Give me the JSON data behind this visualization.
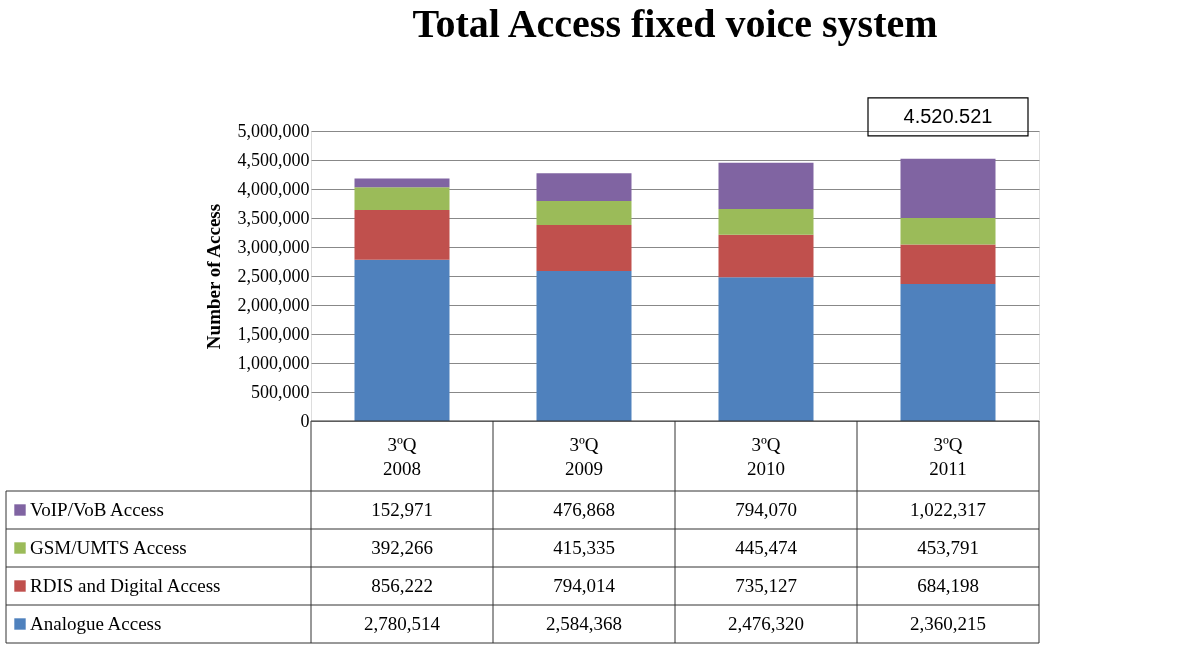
{
  "chart_data": {
    "type": "bar",
    "title": "Total Access fixed voice system",
    "ylabel": "Number of Access",
    "categories": [
      "3ºQ 2008",
      "3ºQ 2009",
      "3ºQ 2010",
      "3ºQ 2011"
    ],
    "stacked": true,
    "series": [
      {
        "name": "Analogue Access",
        "color": "#4f81bd",
        "values": [
          2780514,
          2584368,
          2476320,
          2360215
        ],
        "value_labels": [
          "2,780,514",
          "2,584,368",
          "2,476,320",
          "2,360,215"
        ]
      },
      {
        "name": "RDIS and Digital Access",
        "color": "#c0504d",
        "values": [
          856222,
          794014,
          735127,
          684198
        ],
        "value_labels": [
          "856,222",
          "794,014",
          "735,127",
          "684,198"
        ]
      },
      {
        "name": "GSM/UMTS Access",
        "color": "#9bbb59",
        "values": [
          392266,
          415335,
          445474,
          453791
        ],
        "value_labels": [
          "392,266",
          "415,335",
          "445,474",
          "453,791"
        ]
      },
      {
        "name": "VoIP/VoB Access",
        "color": "#8064a2",
        "values": [
          152971,
          476868,
          794070,
          1022317
        ],
        "value_labels": [
          "152,971",
          "476,868",
          "794,070",
          "1,022,317"
        ]
      }
    ],
    "ylim": [
      0,
      5000000
    ],
    "yticks": [
      0,
      {
        "value": 500000,
        "label": "500,000"
      },
      {
        "value": 1000000,
        "label": "1,000,000"
      },
      {
        "value": 1500000,
        "label": "1,500,000"
      },
      {
        "value": 2000000,
        "label": "2,000,000"
      },
      {
        "value": 2500000,
        "label": "2,500,000"
      },
      {
        "value": 3000000,
        "label": "3,000,000"
      },
      {
        "value": 3500000,
        "label": "3,500,000"
      },
      {
        "value": 4000000,
        "label": "4,000,000"
      },
      {
        "value": 4500000,
        "label": "4,500,000"
      },
      {
        "value": 5000000,
        "label": "5,000,000"
      }
    ],
    "grid": "y",
    "legend": "bottom",
    "annotations": [
      {
        "text": "4.520.521",
        "x": "3ºQ 2011",
        "y": 4520521
      }
    ]
  }
}
